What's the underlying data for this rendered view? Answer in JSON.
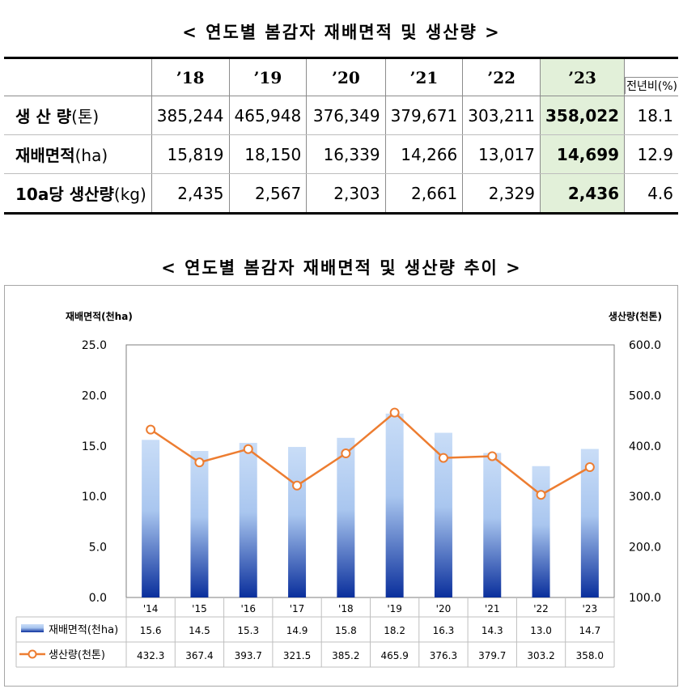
{
  "table_title": "< 연도별 봄감자 재배면적 및 생산량 >",
  "chart_title": "< 연도별 봄감자 재배면적 및 생산량 추이 >",
  "table": {
    "years": [
      "’18",
      "’19",
      "’20",
      "’21",
      "’22",
      "’23"
    ],
    "yoy_header": "전년비(%)",
    "rows": [
      {
        "label": "생 산 량",
        "unit": "(톤)",
        "values": [
          "385,244",
          "465,948",
          "376,349",
          "379,671",
          "303,211",
          "358,022"
        ],
        "yoy": "18.1"
      },
      {
        "label": "재배면적",
        "unit": "(ha)",
        "values": [
          "15,819",
          "18,150",
          "16,339",
          "14,266",
          "13,017",
          "14,699"
        ],
        "yoy": "12.9"
      },
      {
        "label": "10a당 생산량",
        "unit": "(kg)",
        "values": [
          "2,435",
          "2,567",
          "2,303",
          "2,661",
          "2,329",
          "2,436"
        ],
        "yoy": "4.6"
      }
    ]
  },
  "chart_data": {
    "type": "bar+line",
    "categories": [
      "'14",
      "'15",
      "'16",
      "'17",
      "'18",
      "'19",
      "'20",
      "'21",
      "'22",
      "'23"
    ],
    "series": [
      {
        "name": "재배면적(천ha)",
        "type": "bar",
        "axis": "left",
        "values": [
          15.6,
          14.5,
          15.3,
          14.9,
          15.8,
          18.2,
          16.3,
          14.3,
          13.0,
          14.7
        ],
        "labels": [
          "15.6",
          "14.5",
          "15.3",
          "14.9",
          "15.8",
          "18.2",
          "16.3",
          "14.3",
          "13.0",
          "14.7"
        ]
      },
      {
        "name": "생산량(천톤)",
        "type": "line",
        "axis": "right",
        "values": [
          432.3,
          367.4,
          393.7,
          321.5,
          385.2,
          465.9,
          376.3,
          379.7,
          303.2,
          358.0
        ],
        "labels": [
          "432.3",
          "367.4",
          "393.7",
          "321.5",
          "385.2",
          "465.9",
          "376.3",
          "379.7",
          "303.2",
          "358.0"
        ]
      }
    ],
    "y_left_label": "재배면적(천ha)",
    "y_right_label": "생산량(천톤)",
    "y_left_lim": [
      0,
      25
    ],
    "y_right_lim": [
      100,
      600
    ],
    "y_left_ticks": [
      "0.0",
      "5.0",
      "10.0",
      "15.0",
      "20.0",
      "25.0"
    ],
    "y_right_ticks": [
      "100.0",
      "200.0",
      "300.0",
      "400.0",
      "500.0",
      "600.0"
    ],
    "grid": false,
    "legend": "data-table-bottom",
    "colors": {
      "bar_top": "#c6dcf7",
      "bar_bottom": "#0a2f9c",
      "line": "#ed7d31"
    }
  }
}
